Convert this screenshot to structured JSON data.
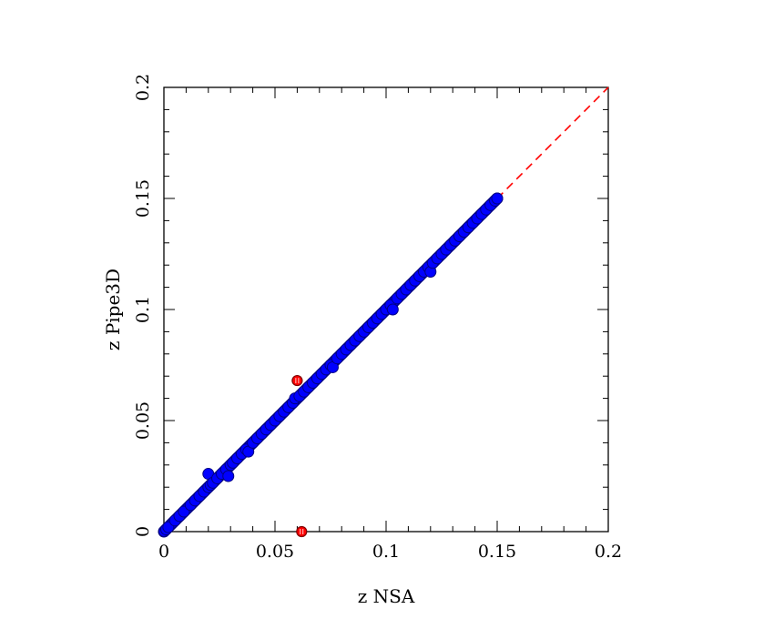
{
  "chart_data": {
    "type": "scatter",
    "xlabel": "z NSA",
    "ylabel": "z Pipe3D",
    "xlim": [
      0,
      0.2
    ],
    "ylim": [
      0,
      0.2
    ],
    "x_ticks": [
      "0",
      "0.05",
      "0.1",
      "0.15",
      "0.2"
    ],
    "y_ticks": [
      "0",
      "0.05",
      "0.1",
      "0.15",
      "0.2"
    ],
    "grid": false,
    "reference_line": {
      "name": "one-to-one",
      "x": [
        0.15,
        0.2
      ],
      "y": [
        0.15,
        0.2
      ],
      "color": "#ff0000",
      "style": "dashed"
    },
    "series": [
      {
        "marker": "filled-circle",
        "fill": "#0000ff",
        "edge": "#000080",
        "trend": {
          "x_start": 0.0,
          "x_end": 0.15,
          "slope": 1.0
        },
        "points": [
          [
            0.001,
            0.001
          ],
          [
            0.002,
            0.002
          ],
          [
            0.005,
            0.005
          ],
          [
            0.007,
            0.007
          ],
          [
            0.009,
            0.009
          ],
          [
            0.012,
            0.012
          ],
          [
            0.014,
            0.014
          ],
          [
            0.016,
            0.016
          ],
          [
            0.018,
            0.018
          ],
          [
            0.02,
            0.02
          ],
          [
            0.02,
            0.026
          ],
          [
            0.021,
            0.021
          ],
          [
            0.022,
            0.022
          ],
          [
            0.024,
            0.024
          ],
          [
            0.026,
            0.026
          ],
          [
            0.028,
            0.028
          ],
          [
            0.029,
            0.025
          ],
          [
            0.03,
            0.03
          ],
          [
            0.031,
            0.031
          ],
          [
            0.033,
            0.033
          ],
          [
            0.035,
            0.035
          ],
          [
            0.037,
            0.037
          ],
          [
            0.038,
            0.036
          ],
          [
            0.04,
            0.04
          ],
          [
            0.042,
            0.042
          ],
          [
            0.044,
            0.044
          ],
          [
            0.046,
            0.046
          ],
          [
            0.048,
            0.048
          ],
          [
            0.05,
            0.05
          ],
          [
            0.052,
            0.052
          ],
          [
            0.054,
            0.054
          ],
          [
            0.056,
            0.056
          ],
          [
            0.058,
            0.058
          ],
          [
            0.059,
            0.06
          ],
          [
            0.061,
            0.061
          ],
          [
            0.063,
            0.063
          ],
          [
            0.065,
            0.065
          ],
          [
            0.067,
            0.067
          ],
          [
            0.069,
            0.069
          ],
          [
            0.071,
            0.071
          ],
          [
            0.073,
            0.073
          ],
          [
            0.075,
            0.075
          ],
          [
            0.076,
            0.074
          ],
          [
            0.078,
            0.078
          ],
          [
            0.08,
            0.08
          ],
          [
            0.082,
            0.082
          ],
          [
            0.084,
            0.084
          ],
          [
            0.086,
            0.086
          ],
          [
            0.088,
            0.088
          ],
          [
            0.09,
            0.09
          ],
          [
            0.092,
            0.092
          ],
          [
            0.094,
            0.094
          ],
          [
            0.096,
            0.096
          ],
          [
            0.098,
            0.098
          ],
          [
            0.1,
            0.1
          ],
          [
            0.102,
            0.102
          ],
          [
            0.103,
            0.1
          ],
          [
            0.105,
            0.105
          ],
          [
            0.107,
            0.107
          ],
          [
            0.109,
            0.109
          ],
          [
            0.111,
            0.111
          ],
          [
            0.113,
            0.113
          ],
          [
            0.115,
            0.115
          ],
          [
            0.117,
            0.117
          ],
          [
            0.119,
            0.119
          ],
          [
            0.12,
            0.117
          ],
          [
            0.121,
            0.121
          ],
          [
            0.123,
            0.123
          ],
          [
            0.125,
            0.125
          ],
          [
            0.127,
            0.127
          ],
          [
            0.129,
            0.129
          ],
          [
            0.131,
            0.131
          ],
          [
            0.133,
            0.133
          ],
          [
            0.135,
            0.135
          ],
          [
            0.137,
            0.137
          ],
          [
            0.139,
            0.139
          ],
          [
            0.141,
            0.141
          ],
          [
            0.143,
            0.143
          ],
          [
            0.145,
            0.145
          ],
          [
            0.147,
            0.147
          ],
          [
            0.149,
            0.149
          ],
          [
            0.15,
            0.15
          ]
        ]
      },
      {
        "marker": "circle",
        "fill": "#ff0000",
        "edge": "#800000",
        "points": [
          [
            0.06,
            0.068
          ],
          [
            0.062,
            0.0
          ]
        ]
      }
    ]
  }
}
